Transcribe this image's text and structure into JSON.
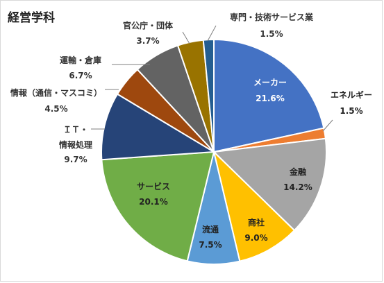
{
  "chart_data": {
    "type": "pie",
    "title": "経営学科",
    "slices": [
      {
        "name": "メーカー",
        "value": 21.6,
        "label": "21.6%",
        "color": "#4472C4"
      },
      {
        "name": "エネルギー",
        "value": 1.5,
        "label": "1.5%",
        "color": "#ED7D31"
      },
      {
        "name": "金融",
        "value": 14.2,
        "label": "14.2%",
        "color": "#A5A5A5"
      },
      {
        "name": "商社",
        "value": 9.0,
        "label": "9.0%",
        "color": "#FFC000"
      },
      {
        "name": "流通",
        "value": 7.5,
        "label": "7.5%",
        "color": "#5B9BD5"
      },
      {
        "name": "サービス",
        "value": 20.1,
        "label": "20.1%",
        "color": "#70AD47"
      },
      {
        "name": "ＩＴ・情報処理",
        "value": 9.7,
        "label": "9.7%",
        "color": "#264478"
      },
      {
        "name": "情報（通信・マスコミ）",
        "value": 4.5,
        "label": "4.5%",
        "color": "#9E480E"
      },
      {
        "name": "運輸・倉庫",
        "value": 6.7,
        "label": "6.7%",
        "color": "#636363"
      },
      {
        "name": "官公庁・団体",
        "value": 3.7,
        "label": "3.7%",
        "color": "#997300"
      },
      {
        "name": "専門・技術サービス業",
        "value": 1.5,
        "label": "1.5%",
        "color": "#255E91"
      }
    ]
  }
}
